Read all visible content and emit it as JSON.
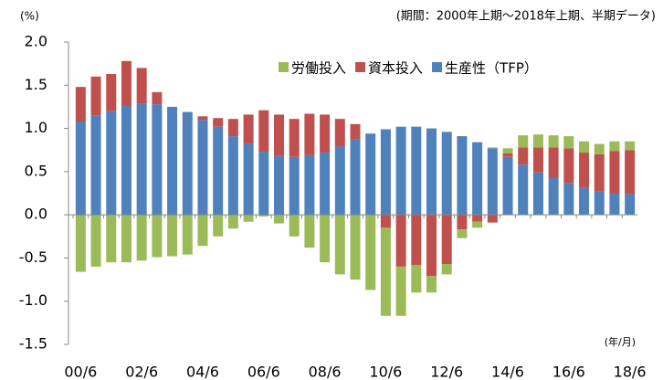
{
  "chart_data": {
    "type": "bar",
    "stacked": true,
    "unit_label": "(%)",
    "note": "(期間：2000年上期～2018年上期、半期データ)",
    "x_label": "(年/月)",
    "categories": [
      "00/6",
      null,
      null,
      null,
      "02/6",
      null,
      null,
      null,
      "04/6",
      null,
      null,
      null,
      "06/6",
      null,
      null,
      null,
      "08/6",
      null,
      null,
      null,
      "10/6",
      null,
      null,
      null,
      "12/6",
      null,
      null,
      null,
      "14/6",
      null,
      null,
      null,
      "16/6",
      null,
      null,
      null,
      "18/6"
    ],
    "series": [
      {
        "name": "生産性（TFP）",
        "color": "#4f81bd",
        "values": [
          1.08,
          1.15,
          1.2,
          1.26,
          1.29,
          1.28,
          1.25,
          1.19,
          1.1,
          1.02,
          0.91,
          0.82,
          0.73,
          0.68,
          0.67,
          0.69,
          0.72,
          0.79,
          0.87,
          0.94,
          0.99,
          1.02,
          1.02,
          1.0,
          0.96,
          0.91,
          0.84,
          0.77,
          0.67,
          0.58,
          0.49,
          0.43,
          0.37,
          0.31,
          0.27,
          0.25,
          0.24
        ]
      },
      {
        "name": "資本投入",
        "color": "#c0504d",
        "values": [
          0.4,
          0.45,
          0.43,
          0.52,
          0.41,
          0.14,
          0,
          0,
          0.04,
          0.1,
          0.2,
          0.34,
          0.48,
          0.48,
          0.44,
          0.48,
          0.44,
          0.32,
          0.18,
          0,
          -0.15,
          -0.6,
          -0.58,
          -0.71,
          -0.57,
          -0.17,
          -0.08,
          -0.09,
          0.04,
          0.2,
          0.29,
          0.35,
          0.4,
          0.41,
          0.43,
          0.49,
          0.51
        ]
      },
      {
        "name": "労働投入",
        "color": "#9bbb59",
        "values": [
          -0.66,
          -0.6,
          -0.55,
          -0.55,
          -0.53,
          -0.49,
          -0.48,
          -0.46,
          -0.36,
          -0.25,
          -0.16,
          -0.08,
          -0.02,
          -0.1,
          -0.25,
          -0.38,
          -0.55,
          -0.69,
          -0.75,
          -0.87,
          -1.02,
          -0.57,
          -0.32,
          -0.19,
          -0.12,
          -0.1,
          -0.07,
          0.01,
          0.06,
          0.14,
          0.15,
          0.14,
          0.14,
          0.13,
          0.12,
          0.11,
          0.1
        ]
      }
    ],
    "legend_order": [
      2,
      1,
      0
    ],
    "ylim": [
      -1.5,
      2.0
    ],
    "yticks": [
      {
        "value": 2,
        "label": "2.0"
      },
      1.5,
      {
        "value": 1,
        "label": "1.0"
      },
      0.5,
      {
        "value": 0,
        "label": "0.0"
      },
      -0.5,
      {
        "value": -1,
        "label": "-1.0"
      },
      -1.5
    ],
    "grid": false
  }
}
